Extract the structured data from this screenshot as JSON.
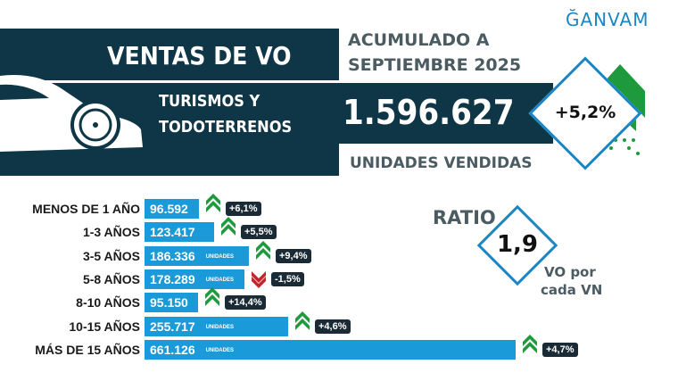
{
  "brand": "ĞANVAM",
  "header": {
    "title": "VENTAS DE VO",
    "period_line1": "ACUMULADO A",
    "period_line2": "SEPTIEMBRE 2025",
    "segment_line1": "TURISMOS Y",
    "segment_line2": "TODOTERRENOS",
    "total": "1.596.627",
    "total_unit": "UNIDADES VENDIDAS",
    "total_change": "+5,2%"
  },
  "ratio": {
    "label": "RATIO",
    "value": "1,9",
    "caption_line1": "VO por",
    "caption_line2": "cada VN"
  },
  "colors": {
    "navy": "#0f3646",
    "bar": "#1a9ad8",
    "up": "#1e9a3c",
    "down": "#c0272d",
    "accent": "#1b86c4"
  },
  "chart_data": {
    "type": "bar",
    "orientation": "horizontal",
    "categories": [
      "MENOS DE 1 AÑO",
      "1-3 AÑOS",
      "3-5 AÑOS",
      "5-8 AÑOS",
      "8-10 AÑOS",
      "10-15 AÑOS",
      "MÁS DE 15 AÑOS"
    ],
    "values": [
      96592,
      123417,
      186336,
      178289,
      95150,
      255717,
      661126
    ],
    "value_labels": [
      "96.592",
      "123.417",
      "186.336",
      "178.289",
      "95.150",
      "255.717",
      "661.126"
    ],
    "unit_labels": [
      "",
      "",
      "UNIDADES",
      "UNIDADES",
      "",
      "UNIDADES",
      "UNIDADES"
    ],
    "changes": [
      "+6,1%",
      "+5,5%",
      "+9,4%",
      "-1,5%",
      "+14,4%",
      "+4,6%",
      "+4,7%"
    ],
    "directions": [
      "up",
      "up",
      "up",
      "down",
      "up",
      "up",
      "up"
    ]
  }
}
